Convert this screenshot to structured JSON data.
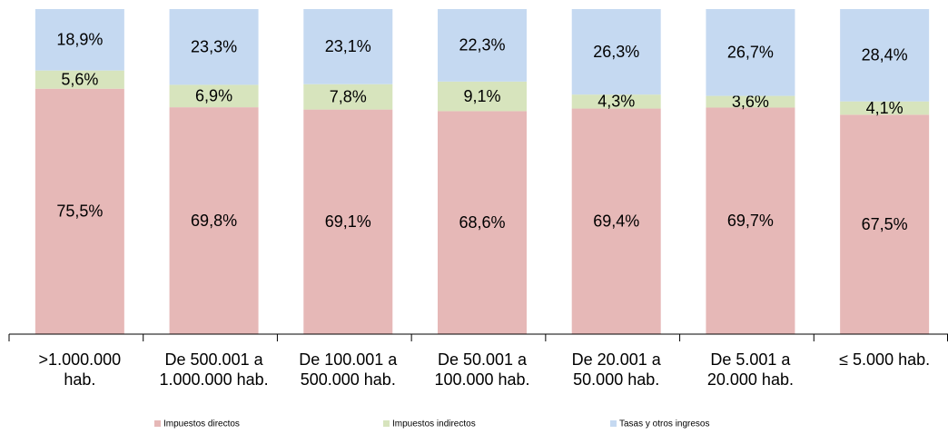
{
  "chart_data": {
    "type": "stacked_bar",
    "categories": [
      ">1.000.000\nhab.",
      "De 500.001 a\n1.000.000 hab.",
      "De 100.001 a\n500.000 hab.",
      "De 50.001 a\n100.000 hab.",
      "De 20.001 a\n50.000 hab.",
      "De 5.001 a\n20.000 hab.",
      "≤ 5.000 hab."
    ],
    "series": [
      {
        "name": "Impuestos directos",
        "color": "#e6b8b7",
        "values": [
          75.5,
          69.8,
          69.1,
          68.6,
          69.4,
          69.7,
          67.5
        ],
        "value_labels": [
          "75,5%",
          "69,8%",
          "69,1%",
          "68,6%",
          "69,4%",
          "69,7%",
          "67,5%"
        ]
      },
      {
        "name": "Impuestos indirectos",
        "color": "#d7e4bd",
        "values": [
          5.6,
          6.9,
          7.8,
          9.1,
          4.3,
          3.6,
          4.1
        ],
        "value_labels": [
          "5,6%",
          "6,9%",
          "7,8%",
          "9,1%",
          "4,3%",
          "3,6%",
          "4,1%"
        ]
      },
      {
        "name": "Tasas y otros ingresos",
        "color": "#c5d9f1",
        "values": [
          18.9,
          23.3,
          23.1,
          22.3,
          26.3,
          26.7,
          28.4
        ],
        "value_labels": [
          "18,9%",
          "23,3%",
          "23,1%",
          "22,3%",
          "26,3%",
          "26,7%",
          "28,4%"
        ]
      }
    ],
    "ylim": [
      0,
      100
    ],
    "legend": "bottom"
  }
}
